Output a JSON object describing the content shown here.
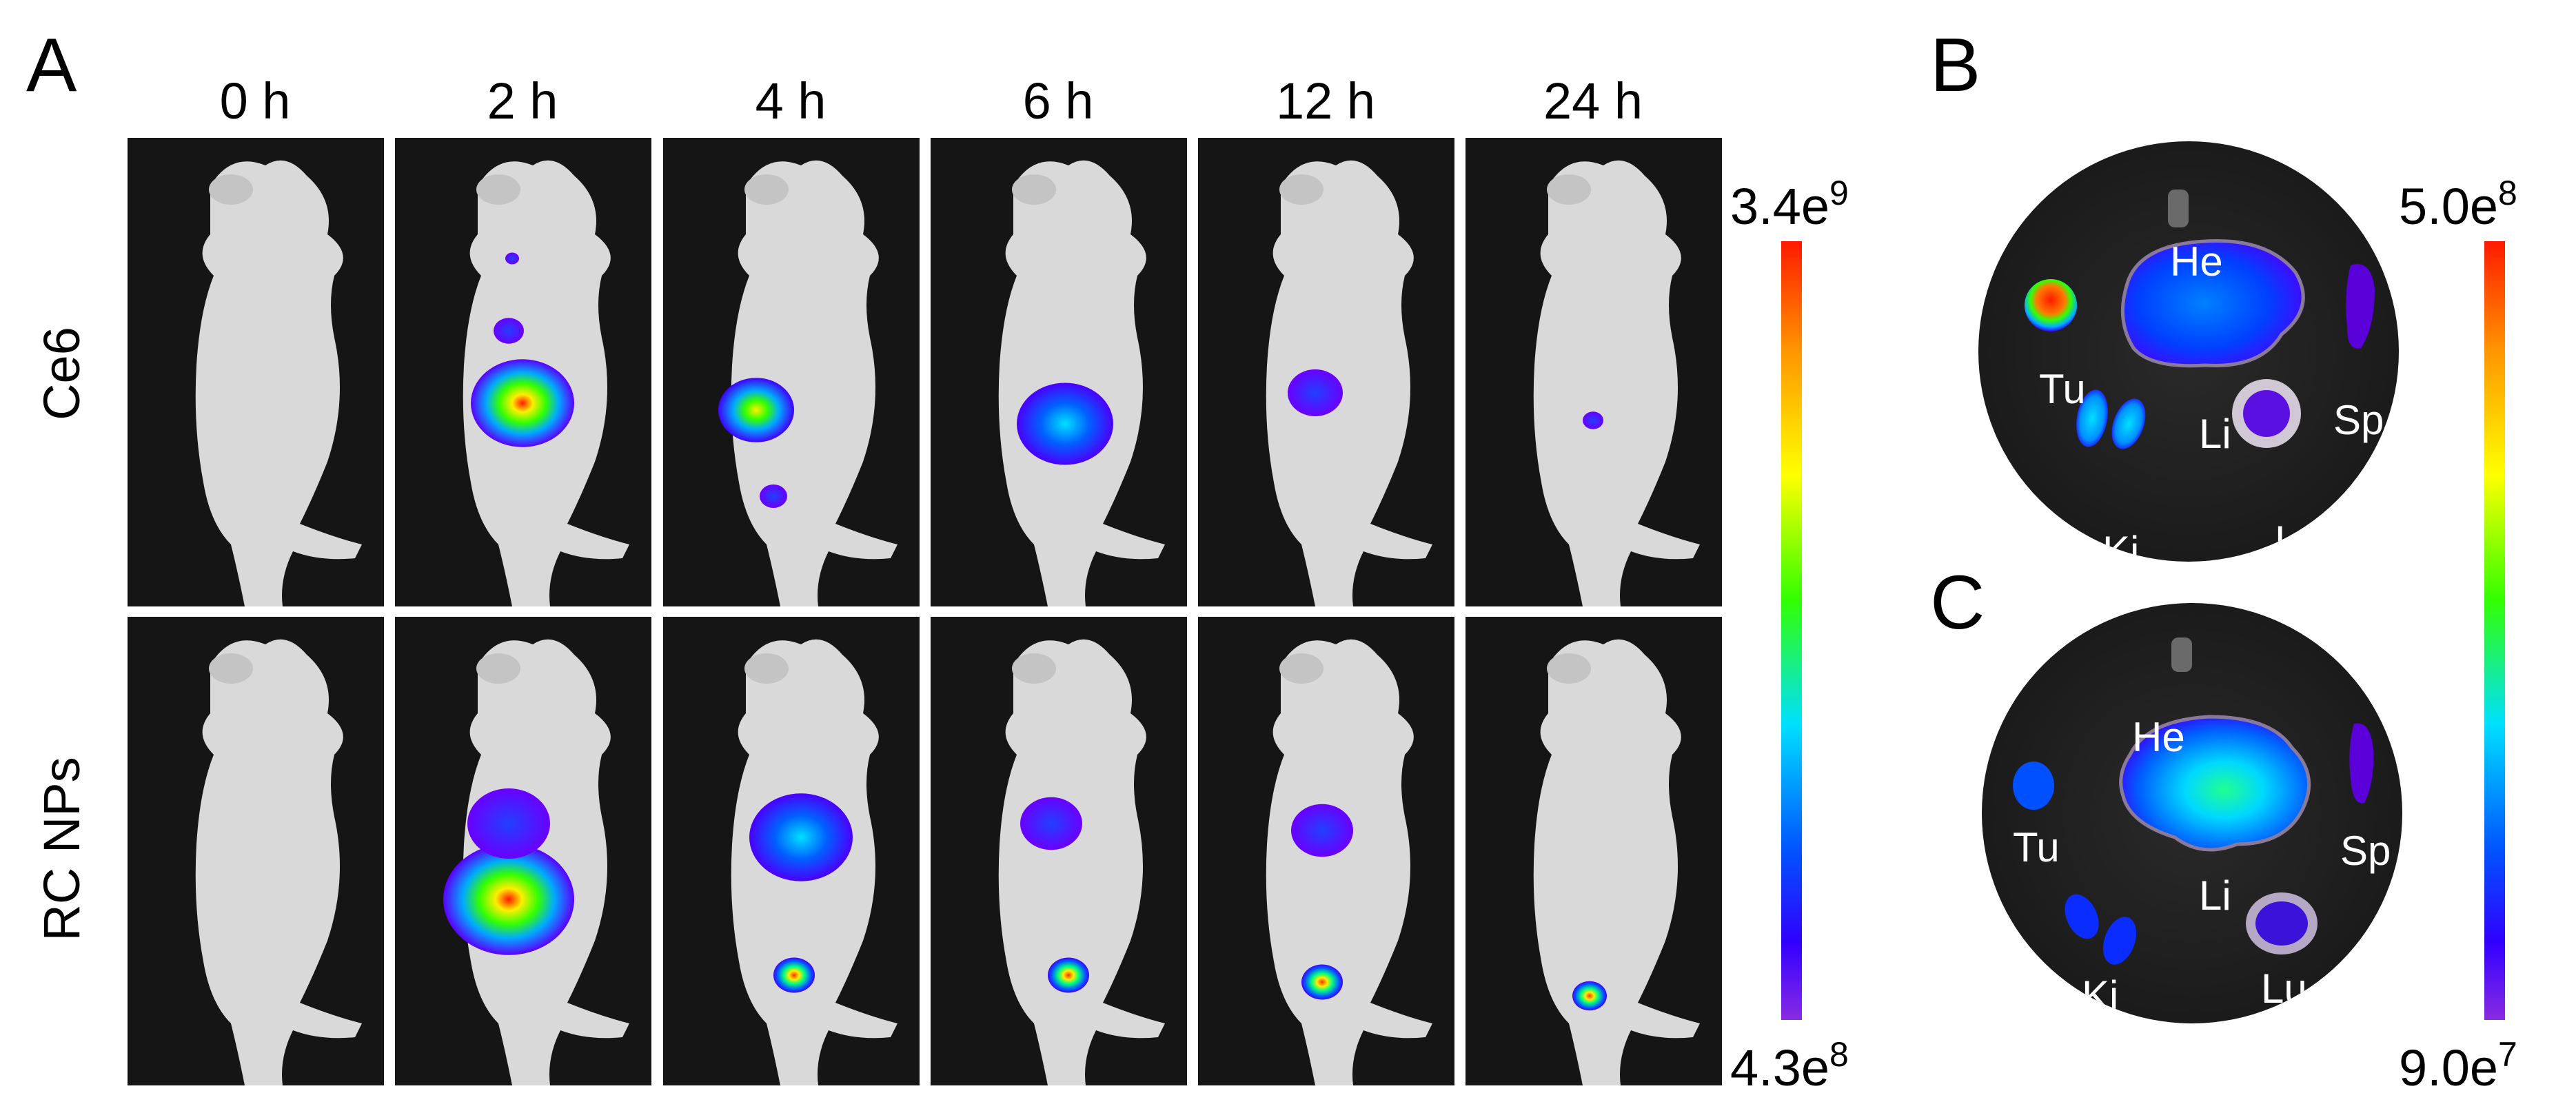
{
  "panel_a": {
    "letter": "A",
    "time_points": [
      "0 h",
      "2 h",
      "4 h",
      "6 h",
      "12 h",
      "24 h"
    ],
    "rows": [
      "Ce6",
      "RC NPs"
    ],
    "scale": {
      "max": "3.4e",
      "max_exp": "9",
      "min": "4.3e",
      "min_exp": "8"
    }
  },
  "panel_b": {
    "letter": "B",
    "organs": {
      "he": "He",
      "tu": "Tu",
      "li": "Li",
      "sp": "Sp",
      "ki": "Ki",
      "lu": "Lu"
    }
  },
  "panel_c": {
    "letter": "C",
    "organs": {
      "he": "He",
      "tu": "Tu",
      "li": "Li",
      "sp": "Sp",
      "ki": "Ki",
      "lu": "Lu"
    }
  },
  "organ_scale": {
    "max": "5.0e",
    "max_exp": "8",
    "min": "9.0e",
    "min_exp": "7"
  },
  "colors": {
    "background": "#151515",
    "mouse": "#d9d9d9",
    "high": "#ff1a00",
    "low": "#8a2be2"
  }
}
